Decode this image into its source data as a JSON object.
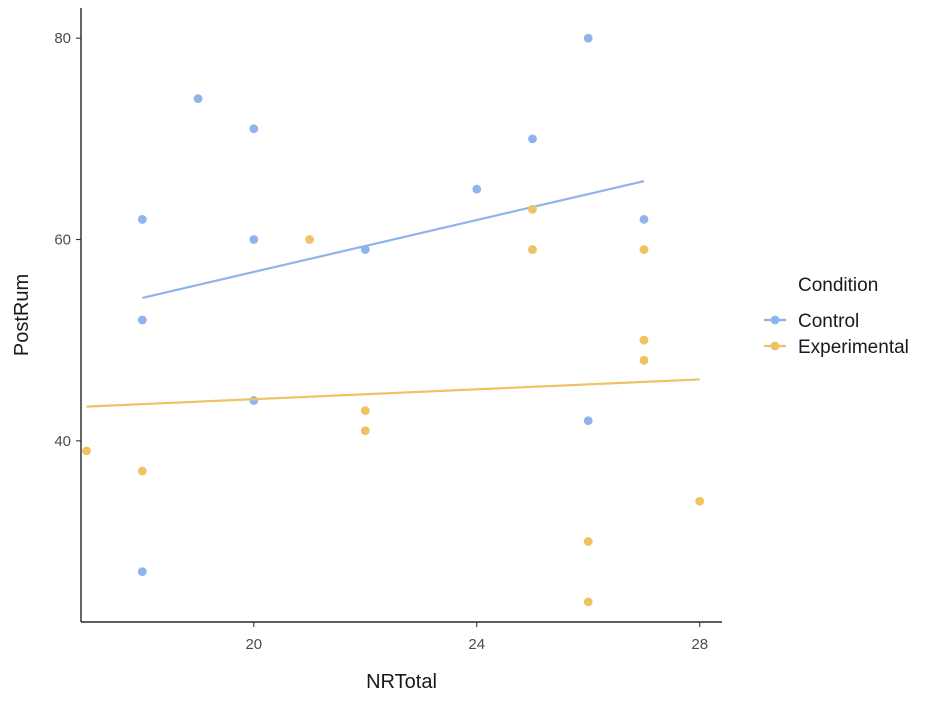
{
  "chart_data": {
    "type": "scatter",
    "xlabel": "NRTotal",
    "ylabel": "PostRum",
    "xlim": [
      16.9,
      28.4
    ],
    "ylim": [
      22.0,
      83.0
    ],
    "x_ticks": [
      20,
      24,
      28
    ],
    "y_ticks": [
      40,
      60,
      80
    ],
    "grid": false,
    "legend": {
      "title": "Condition",
      "placement": "right"
    },
    "series": [
      {
        "name": "Control",
        "color": "#8fb4ec",
        "points": [
          {
            "x": 18,
            "y": 62
          },
          {
            "x": 18,
            "y": 52
          },
          {
            "x": 18,
            "y": 27
          },
          {
            "x": 19,
            "y": 74
          },
          {
            "x": 20,
            "y": 71
          },
          {
            "x": 20,
            "y": 60
          },
          {
            "x": 20,
            "y": 44
          },
          {
            "x": 22,
            "y": 59
          },
          {
            "x": 24,
            "y": 65
          },
          {
            "x": 25,
            "y": 70
          },
          {
            "x": 26,
            "y": 80
          },
          {
            "x": 26,
            "y": 42
          },
          {
            "x": 27,
            "y": 62
          }
        ],
        "fit": {
          "x": [
            18,
            27
          ],
          "y": [
            54.2,
            65.8
          ]
        }
      },
      {
        "name": "Experimental",
        "color": "#efc264",
        "points": [
          {
            "x": 17,
            "y": 39
          },
          {
            "x": 18,
            "y": 37
          },
          {
            "x": 21,
            "y": 60
          },
          {
            "x": 22,
            "y": 43
          },
          {
            "x": 22,
            "y": 41
          },
          {
            "x": 25,
            "y": 63
          },
          {
            "x": 25,
            "y": 59
          },
          {
            "x": 26,
            "y": 30
          },
          {
            "x": 26,
            "y": 24
          },
          {
            "x": 27,
            "y": 59
          },
          {
            "x": 27,
            "y": 50
          },
          {
            "x": 27,
            "y": 48
          },
          {
            "x": 28,
            "y": 34
          }
        ],
        "fit": {
          "x": [
            17,
            28
          ],
          "y": [
            43.4,
            46.1
          ]
        }
      }
    ]
  }
}
